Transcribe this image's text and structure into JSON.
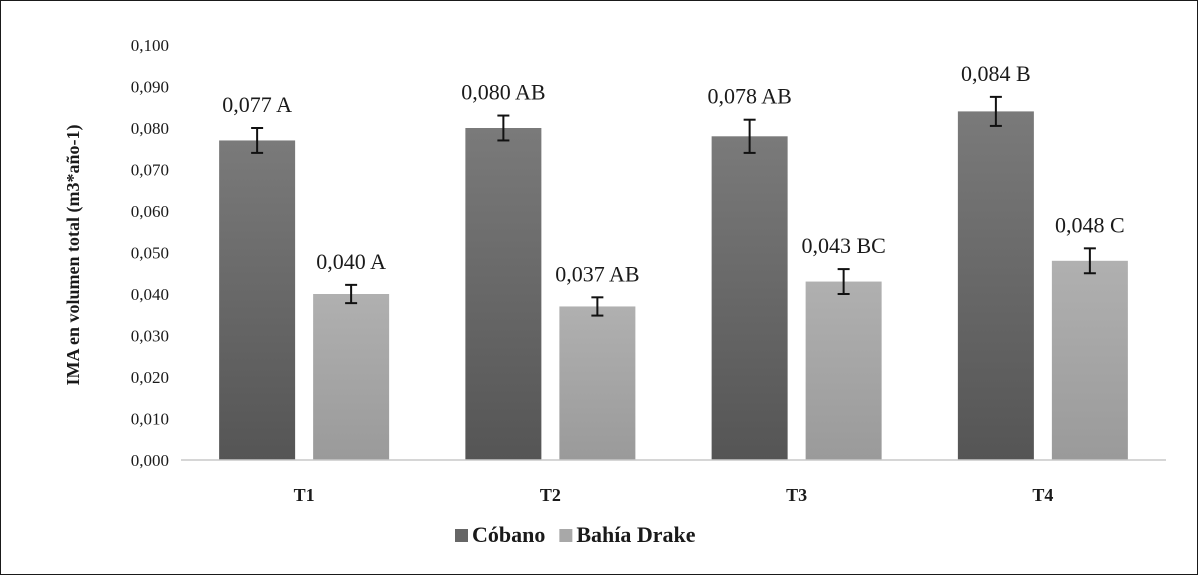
{
  "chart_data": {
    "type": "bar",
    "title": "",
    "xlabel": "",
    "ylabel": "IMA en volumen total (m3*año-1)",
    "ylim": [
      0,
      0.1
    ],
    "yticks": [
      "0,000",
      "0,010",
      "0,020",
      "0,030",
      "0,040",
      "0,050",
      "0,060",
      "0,070",
      "0,080",
      "0,090",
      "0,100"
    ],
    "categories": [
      "T1",
      "T2",
      "T3",
      "T4"
    ],
    "grid": false,
    "legend_position": "bottom",
    "series": [
      {
        "name": "Cóbano",
        "color": "#6e6e6e",
        "values": [
          0.077,
          0.08,
          0.078,
          0.084
        ],
        "error": [
          0.003,
          0.003,
          0.004,
          0.0035
        ],
        "labels": [
          "0,077 A",
          "0,080 AB",
          "0,078 AB",
          "0,084 B"
        ]
      },
      {
        "name": "Bahía Drake",
        "color": "#ababab",
        "values": [
          0.04,
          0.037,
          0.043,
          0.048
        ],
        "error": [
          0.0022,
          0.0022,
          0.003,
          0.003
        ],
        "labels": [
          "0,040 A",
          "0,037 AB",
          "0,043 BC",
          "0,048 C"
        ]
      }
    ]
  }
}
